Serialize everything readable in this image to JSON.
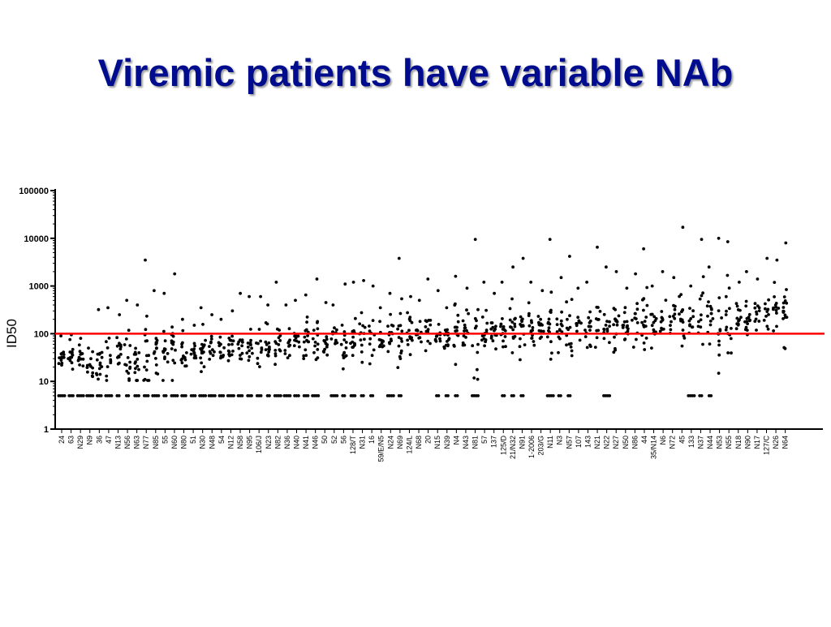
{
  "slide": {
    "title": "Viremic patients have variable NAb"
  },
  "colors": {
    "title": "#000c8e",
    "points": "#000000",
    "threshold_line": "#ff0000"
  },
  "chart_data": {
    "type": "scatter",
    "title": "",
    "xlabel": "",
    "ylabel": "ID50",
    "y_scale": "log",
    "ylim": [
      1,
      100000
    ],
    "y_ticks": [
      {
        "value": 1,
        "label": "1"
      },
      {
        "value": 10,
        "label": "10"
      },
      {
        "value": 100,
        "label": "100"
      },
      {
        "value": 1000,
        "label": "1000"
      },
      {
        "value": 10000,
        "label": "10000"
      },
      {
        "value": 100000,
        "label": "100000"
      }
    ],
    "threshold": {
      "value": 100,
      "color": "#ff0000"
    },
    "grid": false,
    "legend": "none",
    "x_label_orientation": "vertical",
    "categories": [
      "24",
      "63",
      "N29",
      "N9",
      "36",
      "47",
      "N13",
      "N56",
      "N63",
      "N77",
      "N85",
      "55",
      "N60",
      "N80",
      "51",
      "N30",
      "N48",
      "54",
      "N12",
      "N58",
      "N95",
      "106/J",
      "N23",
      "N82",
      "N36",
      "N40",
      "N41",
      "N46",
      "50",
      "52",
      "56",
      "128/T",
      "N31",
      "16",
      "59/E/N5",
      "N24",
      "N69",
      "124/L",
      "N68",
      "20",
      "N15",
      "N39",
      "N4",
      "N43",
      "N81",
      "57",
      "137",
      "125/D",
      "21/N32",
      "N91",
      "1-2006",
      "203/G",
      "N11",
      "N3",
      "N57",
      "107",
      "143",
      "N21",
      "N22",
      "N27",
      "N50",
      "N86",
      "44",
      "35/N14",
      "N6",
      "N72",
      "45",
      "133",
      "N37",
      "N44",
      "N53",
      "N55",
      "N18",
      "N90",
      "N17",
      "127/C",
      "N26",
      "N64"
    ],
    "point_summary_by_category": [
      {
        "category": "24",
        "median_approx": 30,
        "max_approx": 90,
        "has_floor_points": true
      },
      {
        "category": "63",
        "median_approx": 35,
        "max_approx": 95,
        "has_floor_points": true
      },
      {
        "category": "N29",
        "median_approx": 30,
        "max_approx": 80,
        "has_floor_points": true
      },
      {
        "category": "N9",
        "median_approx": 20,
        "max_approx": 50,
        "has_floor_points": true
      },
      {
        "category": "36",
        "median_approx": 25,
        "max_approx": 320,
        "has_floor_points": true
      },
      {
        "category": "47",
        "median_approx": 30,
        "max_approx": 350,
        "has_floor_points": true
      },
      {
        "category": "N13",
        "median_approx": 40,
        "max_approx": 250,
        "has_floor_points": true
      },
      {
        "category": "N56",
        "median_approx": 30,
        "max_approx": 500,
        "has_floor_points": true
      },
      {
        "category": "N63",
        "median_approx": 25,
        "max_approx": 400,
        "has_floor_points": true
      },
      {
        "category": "N77",
        "median_approx": 30,
        "max_approx": 3500,
        "has_floor_points": true
      },
      {
        "category": "N85",
        "median_approx": 40,
        "max_approx": 800,
        "has_floor_points": true
      },
      {
        "category": "55",
        "median_approx": 35,
        "max_approx": 700,
        "has_floor_points": true
      },
      {
        "category": "N60",
        "median_approx": 45,
        "max_approx": 1800,
        "has_floor_points": true
      },
      {
        "category": "N80",
        "median_approx": 40,
        "max_approx": 200,
        "has_floor_points": true
      },
      {
        "category": "51",
        "median_approx": 40,
        "max_approx": 150,
        "has_floor_points": true
      },
      {
        "category": "N30",
        "median_approx": 45,
        "max_approx": 350,
        "has_floor_points": true
      },
      {
        "category": "N48",
        "median_approx": 50,
        "max_approx": 250,
        "has_floor_points": true
      },
      {
        "category": "54",
        "median_approx": 45,
        "max_approx": 200,
        "has_floor_points": true
      },
      {
        "category": "N12",
        "median_approx": 55,
        "max_approx": 300,
        "has_floor_points": true
      },
      {
        "category": "N58",
        "median_approx": 50,
        "max_approx": 700,
        "has_floor_points": true
      },
      {
        "category": "N95",
        "median_approx": 50,
        "max_approx": 600,
        "has_floor_points": true
      },
      {
        "category": "106/J",
        "median_approx": 55,
        "max_approx": 600,
        "has_floor_points": true
      },
      {
        "category": "N23",
        "median_approx": 55,
        "max_approx": 400,
        "has_floor_points": true
      },
      {
        "category": "N82",
        "median_approx": 50,
        "max_approx": 1200,
        "has_floor_points": true
      },
      {
        "category": "N36",
        "median_approx": 55,
        "max_approx": 400,
        "has_floor_points": true
      },
      {
        "category": "N40",
        "median_approx": 60,
        "max_approx": 500,
        "has_floor_points": true
      },
      {
        "category": "N41",
        "median_approx": 60,
        "max_approx": 650,
        "has_floor_points": true
      },
      {
        "category": "N46",
        "median_approx": 65,
        "max_approx": 1400,
        "has_floor_points": true
      },
      {
        "category": "50",
        "median_approx": 60,
        "max_approx": 450,
        "has_floor_points": false
      },
      {
        "category": "52",
        "median_approx": 70,
        "max_approx": 400,
        "has_floor_points": true
      },
      {
        "category": "56",
        "median_approx": 70,
        "max_approx": 1100,
        "has_floor_points": true
      },
      {
        "category": "128/T",
        "median_approx": 75,
        "max_approx": 1200,
        "has_floor_points": true
      },
      {
        "category": "N31",
        "median_approx": 80,
        "max_approx": 1300,
        "has_floor_points": true
      },
      {
        "category": "16",
        "median_approx": 80,
        "max_approx": 1000,
        "has_floor_points": true
      },
      {
        "category": "59/E/N5",
        "median_approx": 80,
        "max_approx": 350,
        "has_floor_points": false
      },
      {
        "category": "N24",
        "median_approx": 90,
        "max_approx": 700,
        "has_floor_points": true
      },
      {
        "category": "N69",
        "median_approx": 90,
        "max_approx": 3800,
        "has_floor_points": true
      },
      {
        "category": "124/L",
        "median_approx": 100,
        "max_approx": 600,
        "has_floor_points": false
      },
      {
        "category": "N68",
        "median_approx": 100,
        "max_approx": 500,
        "has_floor_points": false
      },
      {
        "category": "20",
        "median_approx": 100,
        "max_approx": 1400,
        "has_floor_points": false
      },
      {
        "category": "N15",
        "median_approx": 100,
        "max_approx": 800,
        "has_floor_points": true
      },
      {
        "category": "N39",
        "median_approx": 95,
        "max_approx": 350,
        "has_floor_points": true
      },
      {
        "category": "N4",
        "median_approx": 100,
        "max_approx": 1600,
        "has_floor_points": true
      },
      {
        "category": "N43",
        "median_approx": 110,
        "max_approx": 900,
        "has_floor_points": false
      },
      {
        "category": "N81",
        "median_approx": 110,
        "max_approx": 9500,
        "has_floor_points": true
      },
      {
        "category": "57",
        "median_approx": 110,
        "max_approx": 1200,
        "has_floor_points": false
      },
      {
        "category": "137",
        "median_approx": 120,
        "max_approx": 700,
        "has_floor_points": false
      },
      {
        "category": "125/D",
        "median_approx": 120,
        "max_approx": 1200,
        "has_floor_points": true
      },
      {
        "category": "21/N32",
        "median_approx": 120,
        "max_approx": 2500,
        "has_floor_points": true
      },
      {
        "category": "N91",
        "median_approx": 120,
        "max_approx": 3800,
        "has_floor_points": true
      },
      {
        "category": "1-2006",
        "median_approx": 120,
        "max_approx": 1200,
        "has_floor_points": false
      },
      {
        "category": "203/G",
        "median_approx": 125,
        "max_approx": 800,
        "has_floor_points": false
      },
      {
        "category": "N11",
        "median_approx": 130,
        "max_approx": 9500,
        "has_floor_points": true
      },
      {
        "category": "N3",
        "median_approx": 130,
        "max_approx": 1500,
        "has_floor_points": true
      },
      {
        "category": "N57",
        "median_approx": 130,
        "max_approx": 4200,
        "has_floor_points": true
      },
      {
        "category": "107",
        "median_approx": 140,
        "max_approx": 900,
        "has_floor_points": false
      },
      {
        "category": "143",
        "median_approx": 140,
        "max_approx": 1200,
        "has_floor_points": false
      },
      {
        "category": "N21",
        "median_approx": 150,
        "max_approx": 6500,
        "has_floor_points": false
      },
      {
        "category": "N22",
        "median_approx": 150,
        "max_approx": 2500,
        "has_floor_points": true
      },
      {
        "category": "N27",
        "median_approx": 150,
        "max_approx": 2000,
        "has_floor_points": false
      },
      {
        "category": "N50",
        "median_approx": 150,
        "max_approx": 900,
        "has_floor_points": false
      },
      {
        "category": "N86",
        "median_approx": 160,
        "max_approx": 1800,
        "has_floor_points": false
      },
      {
        "category": "44",
        "median_approx": 160,
        "max_approx": 6000,
        "has_floor_points": false
      },
      {
        "category": "35/N14",
        "median_approx": 170,
        "max_approx": 1000,
        "has_floor_points": false
      },
      {
        "category": "N6",
        "median_approx": 180,
        "max_approx": 2000,
        "has_floor_points": false
      },
      {
        "category": "N72",
        "median_approx": 190,
        "max_approx": 1500,
        "has_floor_points": false
      },
      {
        "category": "45",
        "median_approx": 200,
        "max_approx": 17000,
        "has_floor_points": false
      },
      {
        "category": "133",
        "median_approx": 200,
        "max_approx": 1000,
        "has_floor_points": true
      },
      {
        "category": "N37",
        "median_approx": 200,
        "max_approx": 9500,
        "has_floor_points": true
      },
      {
        "category": "N44",
        "median_approx": 210,
        "max_approx": 2500,
        "has_floor_points": true
      },
      {
        "category": "N53",
        "median_approx": 220,
        "max_approx": 10000,
        "has_floor_points": false
      },
      {
        "category": "N55",
        "median_approx": 220,
        "max_approx": 8500,
        "has_floor_points": false
      },
      {
        "category": "N18",
        "median_approx": 230,
        "max_approx": 1200,
        "has_floor_points": false
      },
      {
        "category": "N90",
        "median_approx": 240,
        "max_approx": 2000,
        "has_floor_points": false
      },
      {
        "category": "N17",
        "median_approx": 250,
        "max_approx": 1400,
        "has_floor_points": false
      },
      {
        "category": "127/C",
        "median_approx": 300,
        "max_approx": 3800,
        "has_floor_points": false
      },
      {
        "category": "N26",
        "median_approx": 300,
        "max_approx": 3500,
        "has_floor_points": false
      },
      {
        "category": "N64",
        "median_approx": 330,
        "max_approx": 8000,
        "has_floor_points": false
      }
    ]
  }
}
